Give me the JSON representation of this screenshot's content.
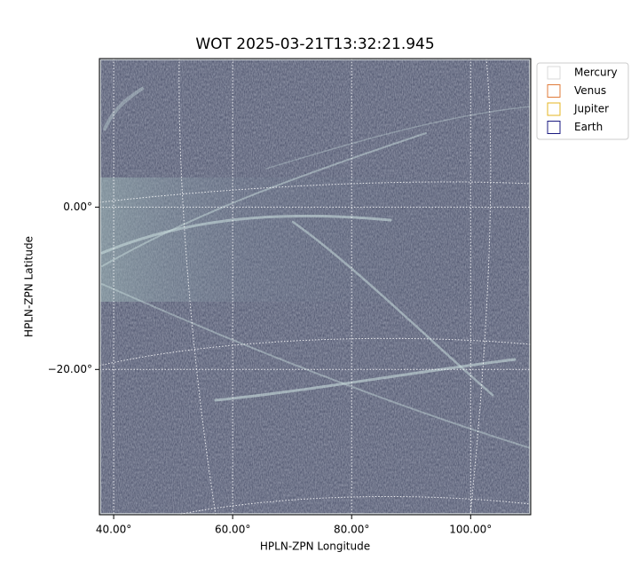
{
  "chart_data": {
    "type": "image",
    "title": "WOT 2025-03-21T13:32:21.945",
    "x_label": "HPLN-ZPN Longitude",
    "y_label": "HPLN-ZPN Latitude",
    "xlim": [
      37.6,
      110.1
    ],
    "ylim": [
      -37.9,
      18.3
    ],
    "xticks": [
      {
        "value": 40,
        "label": "40.00°"
      },
      {
        "value": 60,
        "label": "60.00°"
      },
      {
        "value": 80,
        "label": "80.00°"
      },
      {
        "value": 100,
        "label": "100.00°"
      }
    ],
    "yticks": [
      {
        "value": 0,
        "label": "0.00°"
      },
      {
        "value": -20,
        "label": "−20.00°"
      }
    ],
    "grid": true,
    "legend_position": "upper right",
    "legend": [
      {
        "name": "Mercury",
        "color": "#d9d9d9"
      },
      {
        "name": "Venus",
        "color": "#e07b39"
      },
      {
        "name": "Jupiter",
        "color": "#e6b422"
      },
      {
        "name": "Earth",
        "color": "#1a1a80"
      }
    ]
  }
}
